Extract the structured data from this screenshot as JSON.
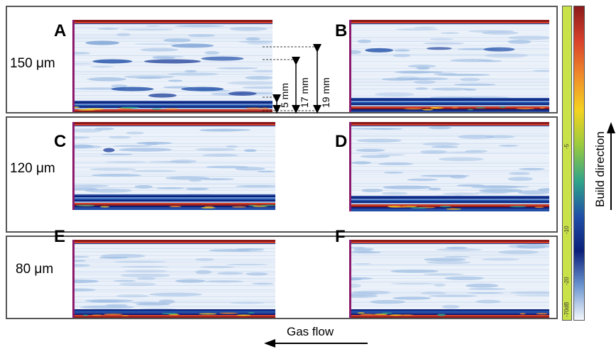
{
  "panels": {
    "A": {
      "label": "A"
    },
    "B": {
      "label": "B"
    },
    "C": {
      "label": "C"
    },
    "D": {
      "label": "D"
    },
    "E": {
      "label": "E"
    },
    "F": {
      "label": "F"
    }
  },
  "rows": [
    {
      "label": "150 μm"
    },
    {
      "label": "120 μm"
    },
    {
      "label": "80 μm"
    }
  ],
  "measurements": [
    {
      "label": "5 mm"
    },
    {
      "label": "17 mm"
    },
    {
      "label": "19 mm"
    }
  ],
  "scale": {
    "ticks": [
      "-5",
      "-10",
      "-20",
      "-70dB"
    ],
    "colors": [
      "#8b1a1a",
      "#d9412b",
      "#f08a2a",
      "#f5d21f",
      "#9ccb3c",
      "#2ea38a",
      "#1f4fa8",
      "#0a1f7a",
      "#6b95d0",
      "#f4f7fc"
    ]
  },
  "annotations": {
    "gas_flow": "Gas flow",
    "build_direction": "Build direction"
  }
}
